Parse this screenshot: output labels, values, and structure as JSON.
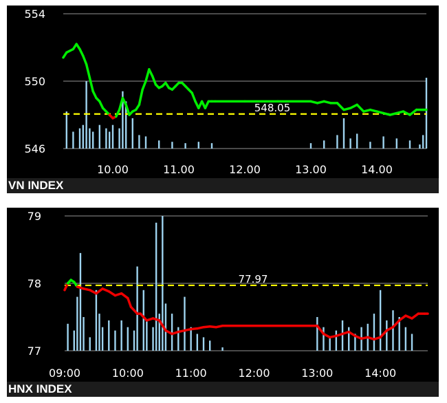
{
  "chart_data": [
    {
      "type": "line",
      "title": "VN INDEX",
      "reference_value": 548.05,
      "reference_label": "548.05",
      "ylim": [
        546,
        554
      ],
      "y_ticks": [
        554,
        550,
        546
      ],
      "x_tick_labels": [
        "10.00",
        "11.00",
        "12.00",
        "13.00",
        "14.00"
      ],
      "x_ticks": [
        10,
        11,
        12,
        13,
        14
      ],
      "xlim": [
        9.25,
        14.75
      ],
      "colors": {
        "above": "#00ee00",
        "below": "#ee0000",
        "reference": "#ffff00",
        "volume": "#9fd4f0",
        "grid": "#777777"
      },
      "series": [
        {
          "x": [
            9.25,
            9.3,
            9.4,
            9.45,
            9.5,
            9.55,
            9.6,
            9.65,
            9.7,
            9.75,
            9.8,
            9.85,
            9.9,
            9.95,
            10.0,
            10.05,
            10.1,
            10.15,
            10.2,
            10.25,
            10.3,
            10.35,
            10.4,
            10.45,
            10.5,
            10.55,
            10.6,
            10.65,
            10.7,
            10.75,
            10.8,
            10.85,
            10.9,
            10.95,
            11.0,
            11.05,
            11.1,
            11.15,
            11.2,
            11.25,
            11.3,
            11.35,
            11.4,
            11.45,
            11.5,
            11.55,
            12.0,
            12.5,
            13.0,
            13.1,
            13.2,
            13.3,
            13.4,
            13.5,
            13.6,
            13.7,
            13.8,
            13.9,
            14.0,
            14.1,
            14.2,
            14.3,
            14.4,
            14.5,
            14.6,
            14.7,
            14.75
          ],
          "values": [
            551.4,
            551.7,
            551.9,
            552.2,
            551.9,
            551.5,
            551.0,
            550.2,
            549.4,
            549.0,
            548.8,
            548.4,
            548.2,
            548.0,
            547.8,
            547.9,
            548.3,
            549.0,
            548.6,
            548.0,
            548.2,
            548.3,
            548.6,
            549.5,
            550.0,
            550.7,
            550.3,
            549.8,
            549.6,
            549.7,
            549.9,
            549.6,
            549.5,
            549.7,
            549.9,
            549.9,
            549.7,
            549.5,
            549.3,
            548.8,
            548.4,
            548.8,
            548.4,
            548.8,
            548.8,
            548.8,
            548.8,
            548.8,
            548.8,
            548.7,
            548.8,
            548.7,
            548.7,
            548.3,
            548.4,
            548.6,
            548.2,
            548.3,
            548.2,
            548.1,
            548.0,
            548.1,
            548.2,
            548.0,
            548.3,
            548.3,
            548.3
          ]
        }
      ],
      "volume": {
        "x": [
          9.3,
          9.4,
          9.5,
          9.55,
          9.6,
          9.65,
          9.7,
          9.8,
          9.9,
          9.95,
          10.0,
          10.1,
          10.15,
          10.2,
          10.3,
          10.4,
          10.5,
          10.7,
          10.9,
          11.1,
          11.3,
          11.5,
          13.0,
          13.2,
          13.4,
          13.5,
          13.6,
          13.7,
          13.9,
          14.1,
          14.3,
          14.5,
          14.65,
          14.7,
          14.75
        ],
        "values": [
          0.55,
          0.25,
          0.3,
          0.35,
          1.0,
          0.3,
          0.25,
          0.35,
          0.3,
          0.25,
          0.35,
          0.3,
          0.85,
          0.7,
          0.45,
          0.2,
          0.18,
          0.12,
          0.1,
          0.08,
          0.1,
          0.08,
          0.08,
          0.12,
          0.2,
          0.45,
          0.15,
          0.22,
          0.1,
          0.18,
          0.15,
          0.12,
          0.06,
          0.2,
          1.05
        ]
      }
    },
    {
      "type": "line",
      "title": "HNX INDEX",
      "reference_value": 77.97,
      "reference_label": "77.97",
      "ylim": [
        77,
        79
      ],
      "y_ticks": [
        79,
        78,
        77
      ],
      "x_tick_labels": [
        "09:00",
        "10:00",
        "11:00",
        "12:00",
        "13:00",
        "14:00"
      ],
      "x_ticks": [
        9,
        10,
        11,
        12,
        13,
        14
      ],
      "xlim": [
        9,
        14.75
      ],
      "colors": {
        "above": "#00ee00",
        "below": "#ee0000",
        "reference": "#ffff00",
        "volume": "#9fd4f0",
        "grid": "#777777"
      },
      "series": [
        {
          "x": [
            9.0,
            9.05,
            9.1,
            9.15,
            9.2,
            9.3,
            9.4,
            9.5,
            9.6,
            9.7,
            9.8,
            9.9,
            10.0,
            10.05,
            10.1,
            10.15,
            10.2,
            10.25,
            10.3,
            10.4,
            10.5,
            10.6,
            10.7,
            10.8,
            10.9,
            11.0,
            11.1,
            11.2,
            11.3,
            11.4,
            11.5,
            12.0,
            12.5,
            13.0,
            13.1,
            13.2,
            13.3,
            13.4,
            13.5,
            13.6,
            13.7,
            13.8,
            13.9,
            14.0,
            14.1,
            14.2,
            14.3,
            14.4,
            14.5,
            14.6,
            14.7,
            14.75
          ],
          "values": [
            77.9,
            78.0,
            78.05,
            78.02,
            77.95,
            77.92,
            77.9,
            77.85,
            77.92,
            77.88,
            77.82,
            77.85,
            77.78,
            77.65,
            77.6,
            77.55,
            77.55,
            77.5,
            77.45,
            77.48,
            77.45,
            77.3,
            77.25,
            77.28,
            77.3,
            77.32,
            77.33,
            77.35,
            77.36,
            77.35,
            77.37,
            77.37,
            77.37,
            77.37,
            77.25,
            77.2,
            77.22,
            77.25,
            77.28,
            77.22,
            77.18,
            77.2,
            77.17,
            77.2,
            77.3,
            77.35,
            77.45,
            77.52,
            77.48,
            77.55,
            77.55,
            77.55
          ]
        }
      ],
      "volume": {
        "x": [
          9.05,
          9.15,
          9.2,
          9.25,
          9.3,
          9.4,
          9.5,
          9.55,
          9.6,
          9.7,
          9.8,
          9.9,
          10.0,
          10.1,
          10.15,
          10.25,
          10.3,
          10.4,
          10.45,
          10.5,
          10.55,
          10.6,
          10.7,
          10.8,
          10.9,
          11.0,
          11.1,
          11.2,
          11.3,
          11.5,
          13.0,
          13.1,
          13.2,
          13.3,
          13.4,
          13.5,
          13.6,
          13.7,
          13.8,
          13.9,
          14.0,
          14.1,
          14.2,
          14.3,
          14.4,
          14.5
        ],
        "values": [
          0.4,
          0.3,
          0.8,
          1.45,
          0.5,
          0.2,
          0.9,
          0.55,
          0.35,
          0.45,
          0.3,
          0.45,
          0.35,
          0.3,
          1.25,
          0.9,
          0.45,
          0.35,
          1.9,
          0.55,
          2.0,
          0.7,
          0.55,
          0.35,
          0.8,
          0.35,
          0.25,
          0.2,
          0.15,
          0.05,
          0.5,
          0.35,
          0.2,
          0.3,
          0.45,
          0.35,
          0.25,
          0.35,
          0.4,
          0.55,
          0.9,
          0.45,
          0.6,
          0.5,
          0.35,
          0.25
        ]
      }
    }
  ]
}
